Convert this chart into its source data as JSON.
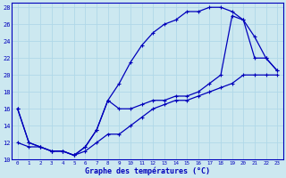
{
  "xlabel": "Graphe des températures (°C)",
  "bg_color": "#cce8f0",
  "line_color": "#0000bb",
  "grid_color": "#b0d8e8",
  "xlim": [
    -0.5,
    23.5
  ],
  "ylim": [
    10,
    28.5
  ],
  "xticks": [
    0,
    1,
    2,
    3,
    4,
    5,
    6,
    7,
    8,
    9,
    10,
    11,
    12,
    13,
    14,
    15,
    16,
    17,
    18,
    19,
    20,
    21,
    22,
    23
  ],
  "yticks": [
    10,
    12,
    14,
    16,
    18,
    20,
    22,
    24,
    26,
    28
  ],
  "line1_x": [
    0,
    1,
    2,
    3,
    4,
    5,
    6,
    7,
    8,
    9,
    10,
    11,
    12,
    13,
    14,
    15,
    16,
    17,
    18,
    19,
    20,
    21,
    22,
    23
  ],
  "line1_y": [
    16,
    12,
    11.5,
    11,
    11,
    10.5,
    11.5,
    13.5,
    17,
    19,
    21.5,
    23.5,
    25,
    26,
    26.5,
    27.5,
    27.5,
    28,
    28,
    27.5,
    26.5,
    24.5,
    22,
    20.5
  ],
  "line2_x": [
    0,
    1,
    2,
    3,
    4,
    5,
    6,
    7,
    8,
    9,
    10,
    11,
    12,
    13,
    14,
    15,
    16,
    17,
    18,
    19,
    20,
    21,
    22,
    23
  ],
  "line2_y": [
    12,
    11.5,
    11.5,
    11,
    11,
    10.5,
    11,
    12,
    13,
    13,
    14,
    15,
    16,
    16.5,
    17,
    17,
    17.5,
    18,
    18.5,
    19,
    20,
    20,
    20,
    20
  ],
  "line3_x": [
    0,
    1,
    2,
    3,
    4,
    5,
    6,
    7,
    8,
    9,
    10,
    11,
    12,
    13,
    14,
    15,
    16,
    17,
    18,
    19,
    20,
    21,
    22,
    23
  ],
  "line3_y": [
    16,
    12,
    11.5,
    11,
    11,
    10.5,
    11.5,
    13.5,
    17,
    16,
    16,
    16.5,
    17,
    17,
    17.5,
    17.5,
    18,
    19,
    20,
    27,
    26.5,
    22,
    22,
    20.5
  ]
}
